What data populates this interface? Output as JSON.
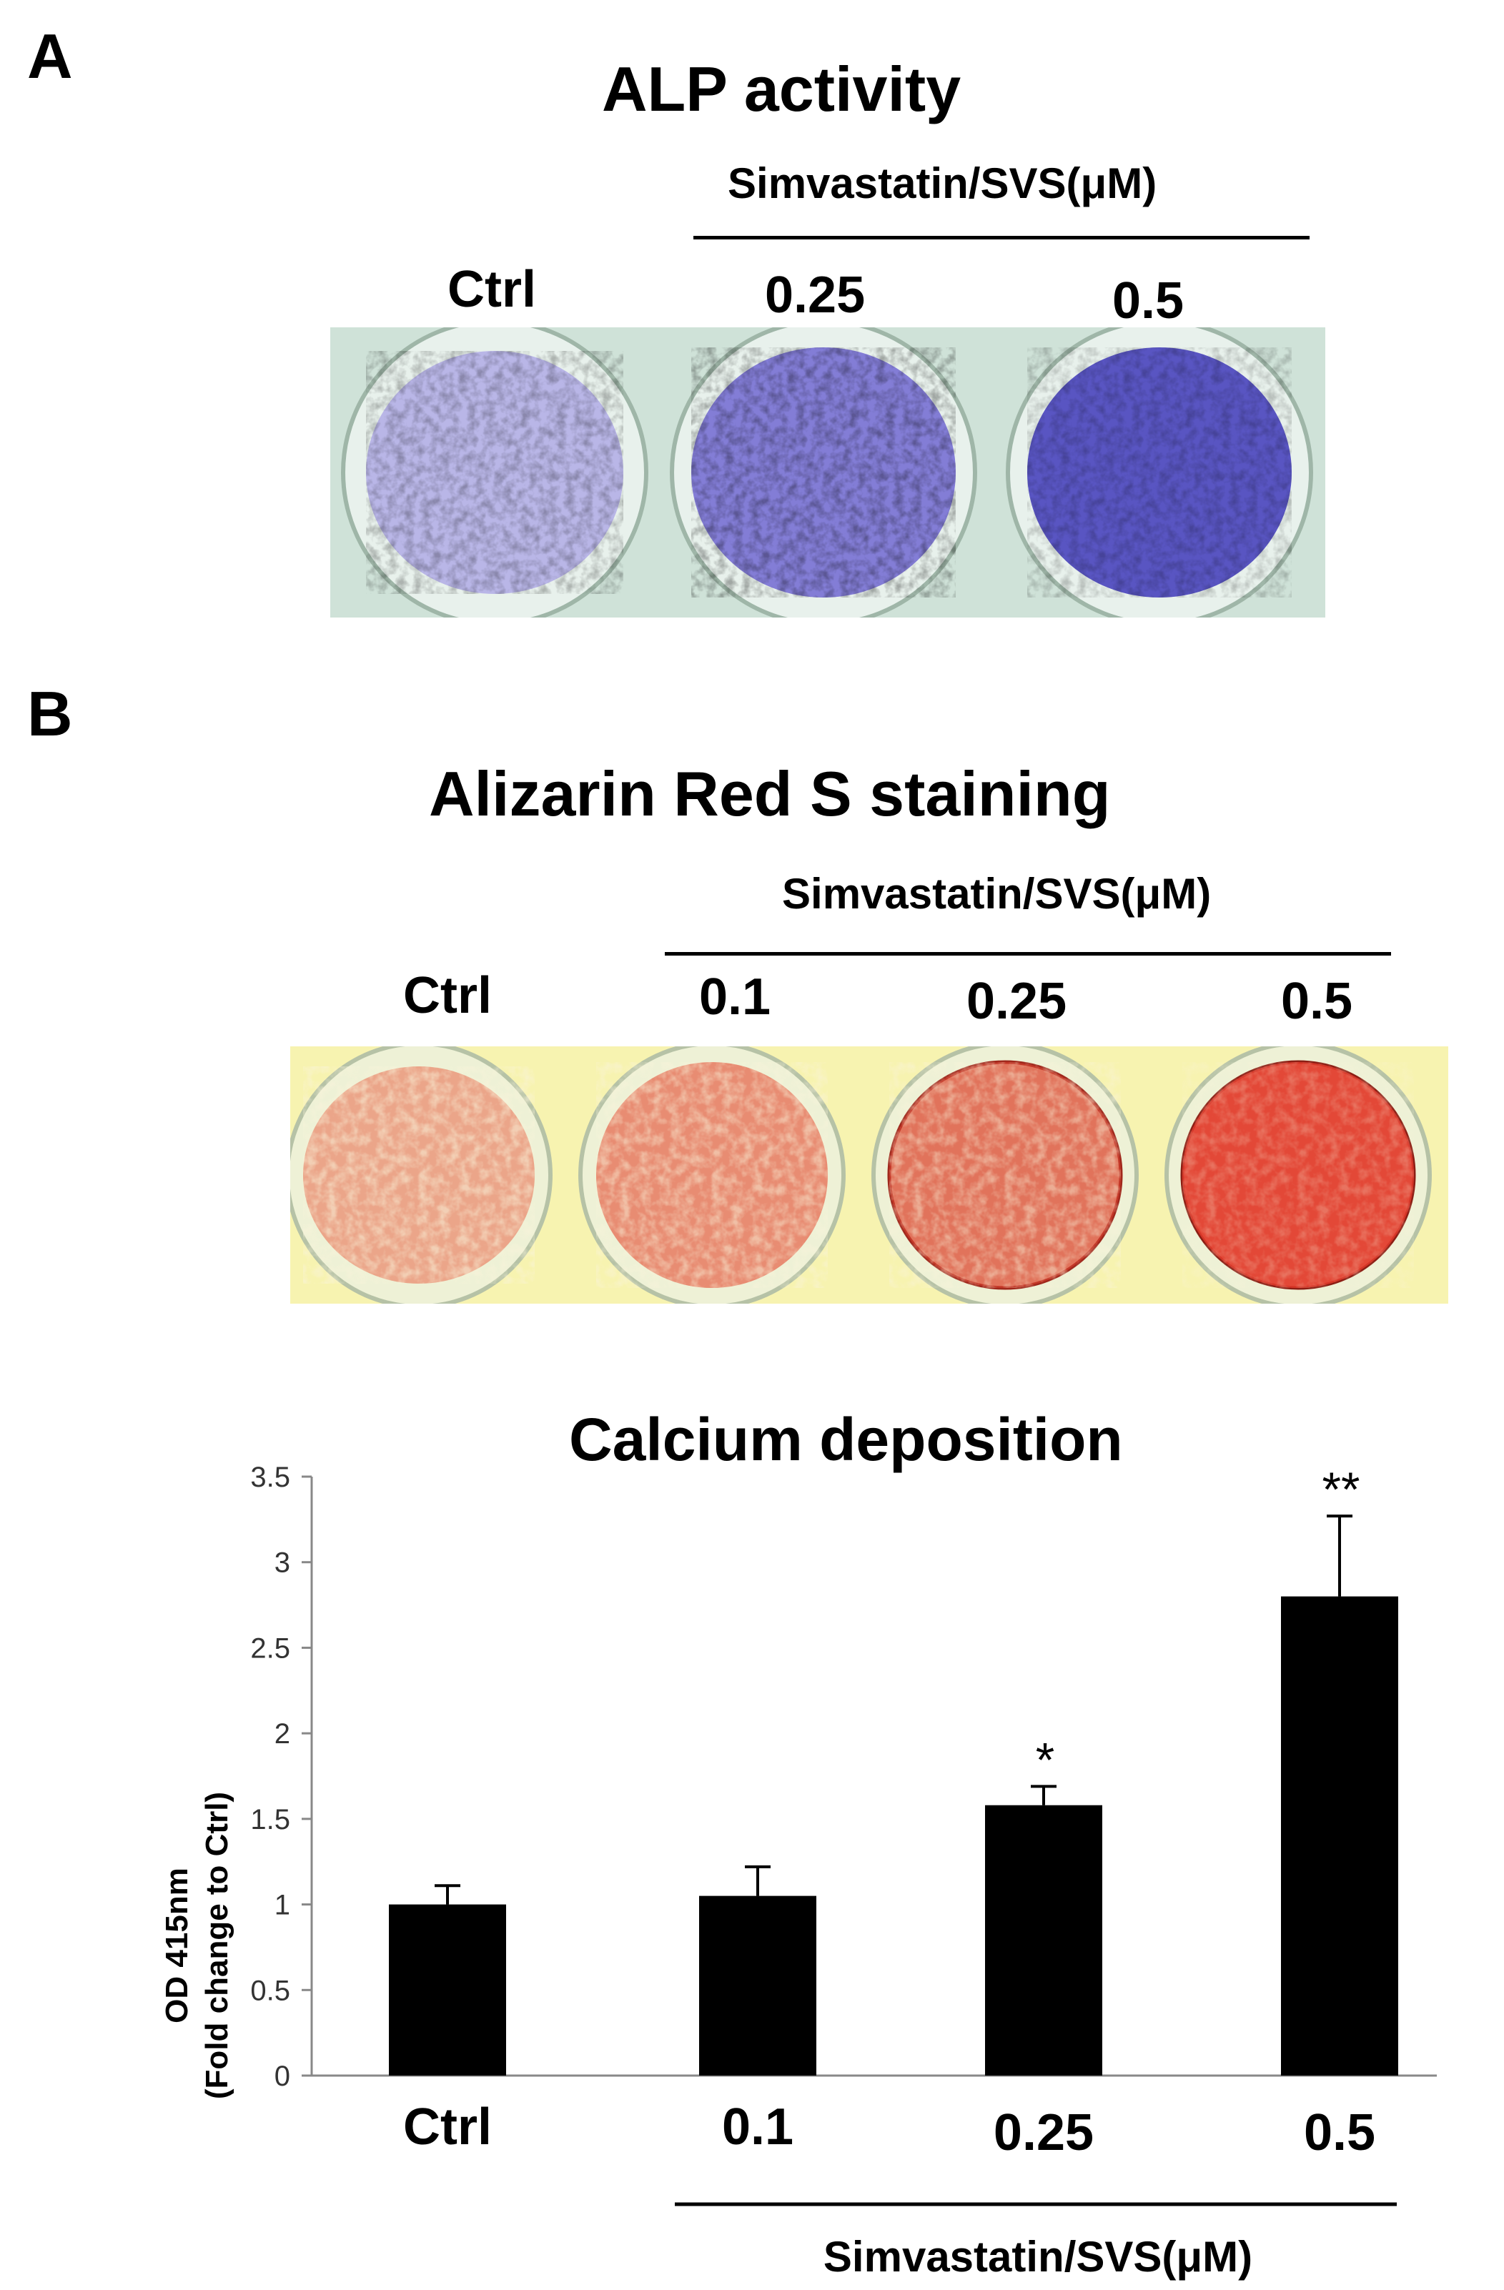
{
  "panel_a": {
    "letter": "A",
    "title": "ALP activity",
    "group_label": "Simvastatin/SVS(μM)",
    "wells": [
      {
        "label": "Ctrl",
        "stain": "#8e87d6",
        "intensity": 0.35
      },
      {
        "label": "0.25",
        "stain": "#5a52c8",
        "intensity": 0.65
      },
      {
        "label": "0.5",
        "stain": "#3f39b8",
        "intensity": 0.85
      }
    ]
  },
  "panel_b": {
    "letter": "B",
    "title": "Alizarin Red S staining",
    "group_label": "Simvastatin/SVS(μM)",
    "wells": [
      {
        "label": "Ctrl",
        "stain": "#e26a55",
        "intensity": 0.35
      },
      {
        "label": "0.1",
        "stain": "#e0523f",
        "intensity": 0.5
      },
      {
        "label": "0.25",
        "stain": "#d8402f",
        "intensity": 0.62
      },
      {
        "label": "0.5",
        "stain": "#e23a2a",
        "intensity": 0.85
      }
    ]
  },
  "chart_data": {
    "type": "bar",
    "title": "Calcium deposition",
    "ylabel_line1": "OD 415nm",
    "ylabel_line2": "(Fold change to Ctrl)",
    "xlabel": "Simvastatin/SVS(μM)",
    "categories": [
      "Ctrl",
      "0.1",
      "0.25",
      "0.5"
    ],
    "values": [
      1.0,
      1.05,
      1.58,
      2.8
    ],
    "errors": [
      0.11,
      0.17,
      0.11,
      0.47
    ],
    "significance": [
      "",
      "",
      "*",
      "**"
    ],
    "ylim": [
      0,
      3.5
    ],
    "yticks": [
      "0",
      "0.5",
      "1",
      "1.5",
      "2",
      "2.5",
      "3",
      "3.5"
    ],
    "bar_color": "#000000",
    "grid": false
  }
}
